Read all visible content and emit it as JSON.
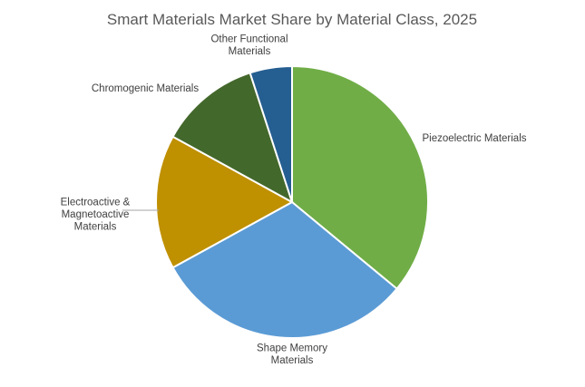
{
  "chart_data": {
    "type": "pie",
    "title": "Smart Materials Market Share by Material Class, 2025",
    "slices": [
      {
        "label": "Piezoelectric Materials",
        "label_lines": [
          "Piezoelectric Materials"
        ],
        "value": 36,
        "color": "#70AD47"
      },
      {
        "label": "Shape Memory Materials",
        "label_lines": [
          "Shape Memory",
          "Materials"
        ],
        "value": 31,
        "color": "#5B9BD5"
      },
      {
        "label": "Electroactive & Magnetoactive Materials",
        "label_lines": [
          "Electroactive &",
          "Magnetoactive",
          "Materials"
        ],
        "value": 16,
        "color": "#BF9000"
      },
      {
        "label": "Chromogenic Materials",
        "label_lines": [
          "Chromogenic Materials"
        ],
        "value": 12,
        "color": "#43682B"
      },
      {
        "label": "Other Functional Materials",
        "label_lines": [
          "Other Functional",
          "Materials"
        ],
        "value": 5,
        "color": "#255E91"
      }
    ],
    "legend": "none",
    "data_labels": "category names outside slices"
  }
}
